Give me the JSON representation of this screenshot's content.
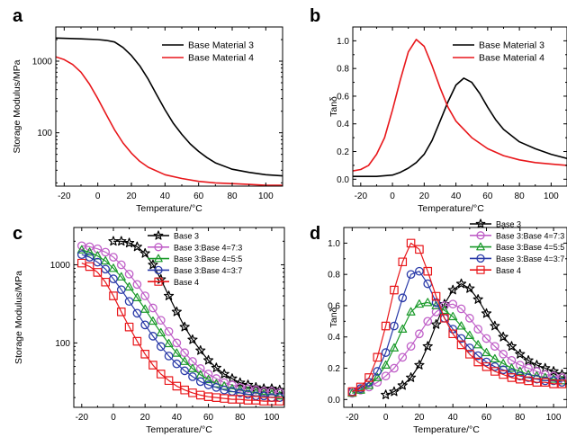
{
  "chart_data": [
    {
      "panel": "a",
      "type": "line",
      "xlabel": "Temperature/°C",
      "ylabel": "Storage Modulus/MPa",
      "xlim": [
        -25,
        110
      ],
      "ylim": [
        18,
        3000
      ],
      "yscale": "log",
      "x_ticks": [
        -20,
        0,
        20,
        40,
        60,
        80,
        100
      ],
      "y_ticks": [
        100,
        1000
      ],
      "legend_position": "top-right",
      "series": [
        {
          "name": "Base Material 3",
          "color": "#000000",
          "x": [
            -25,
            -10,
            0,
            5,
            10,
            15,
            20,
            25,
            30,
            35,
            40,
            45,
            50,
            55,
            60,
            65,
            70,
            80,
            90,
            100,
            110
          ],
          "y": [
            2100,
            2050,
            2000,
            1950,
            1850,
            1550,
            1200,
            860,
            560,
            340,
            210,
            135,
            95,
            70,
            55,
            45,
            38,
            31,
            28,
            26,
            25
          ]
        },
        {
          "name": "Base Material 4",
          "color": "#e8171b",
          "x": [
            -25,
            -20,
            -15,
            -10,
            -5,
            0,
            5,
            10,
            15,
            20,
            25,
            30,
            40,
            50,
            60,
            70,
            80,
            90,
            100,
            110
          ],
          "y": [
            1150,
            1050,
            900,
            700,
            480,
            300,
            180,
            110,
            72,
            52,
            40,
            33,
            26,
            23,
            21,
            20,
            19.5,
            19,
            18.5,
            18.5
          ]
        }
      ]
    },
    {
      "panel": "b",
      "type": "line",
      "xlabel": "Temperature/°C",
      "ylabel": "Tanδ",
      "xlim": [
        -25,
        110
      ],
      "ylim": [
        -0.05,
        1.1
      ],
      "x_ticks": [
        -20,
        0,
        20,
        40,
        60,
        80,
        100
      ],
      "y_ticks": [
        0.0,
        0.2,
        0.4,
        0.6,
        0.8,
        1.0
      ],
      "legend_position": "top-right",
      "series": [
        {
          "name": "Base Material 3",
          "color": "#000000",
          "x": [
            -25,
            -20,
            -10,
            0,
            5,
            10,
            15,
            20,
            25,
            30,
            35,
            40,
            45,
            50,
            55,
            60,
            65,
            70,
            80,
            90,
            100,
            110
          ],
          "y": [
            0.02,
            0.02,
            0.02,
            0.03,
            0.05,
            0.08,
            0.12,
            0.18,
            0.28,
            0.42,
            0.56,
            0.68,
            0.73,
            0.7,
            0.62,
            0.52,
            0.43,
            0.36,
            0.27,
            0.22,
            0.18,
            0.15
          ]
        },
        {
          "name": "Base Material 4",
          "color": "#e8171b",
          "x": [
            -25,
            -20,
            -15,
            -10,
            -5,
            0,
            5,
            10,
            15,
            20,
            25,
            30,
            35,
            40,
            50,
            60,
            70,
            80,
            90,
            100,
            110
          ],
          "y": [
            0.06,
            0.07,
            0.1,
            0.18,
            0.3,
            0.5,
            0.72,
            0.92,
            1.01,
            0.96,
            0.82,
            0.66,
            0.52,
            0.42,
            0.3,
            0.22,
            0.17,
            0.14,
            0.12,
            0.11,
            0.1
          ]
        }
      ]
    },
    {
      "panel": "c",
      "type": "line",
      "xlabel": "Temperature/°C",
      "ylabel": "Storage Modulus/MPa",
      "xlim": [
        -25,
        108
      ],
      "ylim": [
        15,
        3000
      ],
      "yscale": "log",
      "x_ticks": [
        -20,
        0,
        20,
        40,
        60,
        80,
        100
      ],
      "y_ticks": [
        100,
        1000
      ],
      "legend_position": "top-right",
      "series": [
        {
          "name": "Base 3",
          "color": "#000000",
          "marker": "star",
          "x": [
            0,
            5,
            10,
            15,
            20,
            25,
            30,
            35,
            40,
            45,
            50,
            55,
            60,
            65,
            70,
            75,
            80,
            85,
            90,
            95,
            100,
            105
          ],
          "y": [
            2000,
            2000,
            1900,
            1700,
            1400,
            1000,
            650,
            400,
            250,
            160,
            110,
            80,
            60,
            48,
            40,
            35,
            31,
            29,
            27,
            26,
            26,
            25
          ]
        },
        {
          "name": "Base 3:Base 4=7:3",
          "color": "#c060c8",
          "marker": "circle",
          "x": [
            -20,
            -15,
            -10,
            -5,
            0,
            5,
            10,
            15,
            20,
            25,
            30,
            35,
            40,
            45,
            50,
            55,
            60,
            65,
            70,
            75,
            80,
            85,
            90,
            95,
            100,
            105
          ],
          "y": [
            1750,
            1700,
            1600,
            1450,
            1250,
            1000,
            760,
            560,
            400,
            280,
            195,
            140,
            100,
            75,
            58,
            47,
            40,
            35,
            31,
            29,
            27,
            26,
            25,
            24,
            24,
            23
          ]
        },
        {
          "name": "Base 3:Base 4=5:5",
          "color": "#1a9a2a",
          "marker": "triangle",
          "x": [
            -20,
            -15,
            -10,
            -5,
            0,
            5,
            10,
            15,
            20,
            25,
            30,
            35,
            40,
            45,
            50,
            55,
            60,
            65,
            70,
            75,
            80,
            85,
            90,
            95,
            100,
            105
          ],
          "y": [
            1550,
            1450,
            1300,
            1120,
            900,
            700,
            520,
            380,
            270,
            190,
            135,
            98,
            74,
            58,
            47,
            39,
            34,
            30,
            28,
            26,
            25,
            24,
            23,
            22,
            22,
            21
          ]
        },
        {
          "name": "Base 3:Base 4=3:7",
          "color": "#2a3aa8",
          "marker": "circle",
          "x": [
            -20,
            -15,
            -10,
            -5,
            0,
            5,
            10,
            15,
            20,
            25,
            30,
            35,
            40,
            45,
            50,
            55,
            60,
            65,
            70,
            75,
            80,
            85,
            90,
            95,
            100,
            105
          ],
          "y": [
            1350,
            1250,
            1080,
            880,
            660,
            480,
            340,
            240,
            170,
            122,
            90,
            68,
            54,
            44,
            37,
            32,
            29,
            27,
            25,
            24,
            23,
            22,
            21,
            21,
            20,
            20
          ]
        },
        {
          "name": "Base 4",
          "color": "#e8171b",
          "marker": "square",
          "x": [
            -20,
            -15,
            -10,
            -5,
            0,
            5,
            10,
            15,
            20,
            25,
            30,
            35,
            40,
            45,
            50,
            55,
            60,
            65,
            70,
            75,
            80,
            85,
            90,
            95,
            100,
            105
          ],
          "y": [
            1050,
            950,
            800,
            600,
            400,
            250,
            160,
            105,
            72,
            52,
            40,
            33,
            28,
            25,
            23,
            21.5,
            20.5,
            20,
            19.5,
            19,
            19,
            18.5,
            18.5,
            18,
            18,
            18
          ]
        }
      ]
    },
    {
      "panel": "d",
      "type": "line",
      "xlabel": "Temperature/°C",
      "ylabel": "Tanδ",
      "xlim": [
        -25,
        108
      ],
      "ylim": [
        -0.05,
        1.1
      ],
      "x_ticks": [
        -20,
        0,
        20,
        40,
        60,
        80,
        100
      ],
      "y_ticks": [
        0.0,
        0.2,
        0.4,
        0.6,
        0.8,
        1.0
      ],
      "legend_position": "top-right",
      "series": [
        {
          "name": "Base 3",
          "color": "#000000",
          "marker": "star",
          "x": [
            0,
            5,
            10,
            15,
            20,
            25,
            30,
            35,
            40,
            45,
            50,
            55,
            60,
            65,
            70,
            75,
            80,
            85,
            90,
            95,
            100,
            105
          ],
          "y": [
            0.03,
            0.05,
            0.09,
            0.14,
            0.22,
            0.34,
            0.48,
            0.61,
            0.7,
            0.74,
            0.71,
            0.64,
            0.55,
            0.47,
            0.4,
            0.34,
            0.29,
            0.25,
            0.22,
            0.2,
            0.18,
            0.16
          ]
        },
        {
          "name": "Base 3:Base 4=7:3",
          "color": "#c060c8",
          "marker": "circle",
          "x": [
            -20,
            -15,
            -10,
            -5,
            0,
            5,
            10,
            15,
            20,
            25,
            30,
            35,
            40,
            45,
            50,
            55,
            60,
            65,
            70,
            75,
            80,
            85,
            90,
            95,
            100,
            105
          ],
          "y": [
            0.04,
            0.06,
            0.08,
            0.11,
            0.15,
            0.2,
            0.27,
            0.34,
            0.42,
            0.5,
            0.56,
            0.6,
            0.61,
            0.58,
            0.52,
            0.45,
            0.39,
            0.34,
            0.29,
            0.25,
            0.22,
            0.2,
            0.18,
            0.16,
            0.15,
            0.14
          ]
        },
        {
          "name": "Base 3:Base 4=5:5",
          "color": "#1a9a2a",
          "marker": "triangle",
          "x": [
            -20,
            -15,
            -10,
            -5,
            0,
            5,
            10,
            15,
            20,
            25,
            30,
            35,
            40,
            45,
            50,
            55,
            60,
            65,
            70,
            75,
            80,
            85,
            90,
            95,
            100,
            105
          ],
          "y": [
            0.04,
            0.06,
            0.09,
            0.14,
            0.22,
            0.33,
            0.45,
            0.56,
            0.61,
            0.62,
            0.6,
            0.57,
            0.53,
            0.47,
            0.41,
            0.35,
            0.3,
            0.26,
            0.23,
            0.2,
            0.18,
            0.16,
            0.15,
            0.14,
            0.13,
            0.12
          ]
        },
        {
          "name": "Base 3:Base 4=3:7",
          "color": "#2a3aa8",
          "marker": "circle",
          "x": [
            -20,
            -15,
            -10,
            -5,
            0,
            5,
            10,
            15,
            20,
            25,
            30,
            35,
            40,
            45,
            50,
            55,
            60,
            65,
            70,
            75,
            80,
            85,
            90,
            95,
            100,
            105
          ],
          "y": [
            0.05,
            0.07,
            0.11,
            0.18,
            0.3,
            0.47,
            0.65,
            0.8,
            0.82,
            0.74,
            0.62,
            0.52,
            0.45,
            0.39,
            0.33,
            0.28,
            0.24,
            0.21,
            0.19,
            0.17,
            0.15,
            0.14,
            0.13,
            0.12,
            0.12,
            0.11
          ]
        },
        {
          "name": "Base 4",
          "color": "#e8171b",
          "marker": "square",
          "x": [
            -20,
            -15,
            -10,
            -5,
            0,
            5,
            10,
            15,
            20,
            25,
            30,
            35,
            40,
            45,
            50,
            55,
            60,
            65,
            70,
            75,
            80,
            85,
            90,
            95,
            100,
            105
          ],
          "y": [
            0.05,
            0.08,
            0.14,
            0.27,
            0.47,
            0.7,
            0.88,
            1.0,
            0.96,
            0.82,
            0.66,
            0.52,
            0.42,
            0.35,
            0.29,
            0.24,
            0.21,
            0.18,
            0.16,
            0.14,
            0.13,
            0.12,
            0.11,
            0.11,
            0.1,
            0.1
          ]
        }
      ]
    }
  ]
}
